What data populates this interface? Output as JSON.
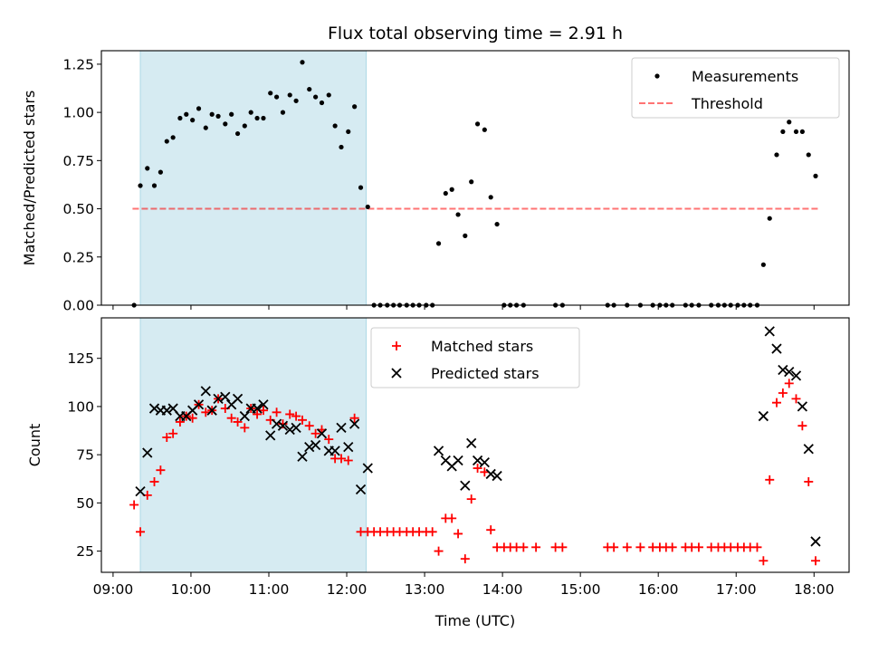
{
  "figure": {
    "title": "Flux total observing time = 2.91 h",
    "xlabel": "Time (UTC)",
    "xticks": [
      "09:00",
      "10:00",
      "11:00",
      "12:00",
      "13:00",
      "14:00",
      "15:00",
      "16:00",
      "17:00",
      "18:00"
    ],
    "colors": {
      "span": "#add8e6",
      "threshold": "#ff0000",
      "measurement": "#000000",
      "matched": "#ff0000",
      "predicted": "#000000"
    }
  },
  "chart_data": [
    {
      "type": "scatter",
      "ylabel": "Matched/Predicted stars",
      "xlim": [
        8.85,
        18.45
      ],
      "ylim": [
        0,
        1.32
      ],
      "yticks": [
        "0.00",
        "0.25",
        "0.50",
        "0.75",
        "1.00",
        "1.25"
      ],
      "x_units": "hours UTC",
      "shaded_interval": [
        9.35,
        12.25
      ],
      "threshold": {
        "value": 0.5,
        "x_range": [
          9.25,
          18.05
        ],
        "style": "dashed"
      },
      "legend": {
        "placement": "top-right",
        "entries": [
          "Measurements",
          "Threshold"
        ]
      },
      "series": [
        {
          "name": "Measurements",
          "points": [
            [
              9.27,
              0.0
            ],
            [
              9.35,
              0.62
            ],
            [
              9.44,
              0.71
            ],
            [
              9.53,
              0.62
            ],
            [
              9.61,
              0.69
            ],
            [
              9.69,
              0.85
            ],
            [
              9.77,
              0.87
            ],
            [
              9.86,
              0.97
            ],
            [
              9.94,
              0.99
            ],
            [
              10.02,
              0.96
            ],
            [
              10.1,
              1.02
            ],
            [
              10.19,
              0.92
            ],
            [
              10.27,
              0.99
            ],
            [
              10.35,
              0.98
            ],
            [
              10.44,
              0.94
            ],
            [
              10.52,
              0.99
            ],
            [
              10.6,
              0.89
            ],
            [
              10.69,
              0.93
            ],
            [
              10.77,
              1.0
            ],
            [
              10.85,
              0.97
            ],
            [
              10.93,
              0.97
            ],
            [
              11.02,
              1.1
            ],
            [
              11.1,
              1.08
            ],
            [
              11.18,
              1.0
            ],
            [
              11.27,
              1.09
            ],
            [
              11.35,
              1.06
            ],
            [
              11.43,
              1.26
            ],
            [
              11.52,
              1.12
            ],
            [
              11.6,
              1.08
            ],
            [
              11.68,
              1.05
            ],
            [
              11.77,
              1.09
            ],
            [
              11.85,
              0.93
            ],
            [
              11.93,
              0.82
            ],
            [
              12.02,
              0.9
            ],
            [
              12.1,
              1.03
            ],
            [
              12.18,
              0.61
            ],
            [
              12.27,
              0.51
            ],
            [
              12.35,
              0.0
            ],
            [
              12.43,
              0.0
            ],
            [
              12.52,
              0.0
            ],
            [
              12.6,
              0.0
            ],
            [
              12.68,
              0.0
            ],
            [
              12.77,
              0.0
            ],
            [
              12.85,
              0.0
            ],
            [
              12.93,
              0.0
            ],
            [
              13.02,
              0.0
            ],
            [
              13.1,
              0.0
            ],
            [
              13.18,
              0.32
            ],
            [
              13.27,
              0.58
            ],
            [
              13.35,
              0.6
            ],
            [
              13.43,
              0.47
            ],
            [
              13.52,
              0.36
            ],
            [
              13.6,
              0.64
            ],
            [
              13.68,
              0.94
            ],
            [
              13.77,
              0.91
            ],
            [
              13.85,
              0.56
            ],
            [
              13.93,
              0.42
            ],
            [
              14.02,
              0.0
            ],
            [
              14.1,
              0.0
            ],
            [
              14.18,
              0.0
            ],
            [
              14.27,
              0.0
            ],
            [
              14.68,
              0.0
            ],
            [
              14.77,
              0.0
            ],
            [
              15.35,
              0.0
            ],
            [
              15.43,
              0.0
            ],
            [
              15.6,
              0.0
            ],
            [
              15.77,
              0.0
            ],
            [
              15.93,
              0.0
            ],
            [
              16.02,
              0.0
            ],
            [
              16.1,
              0.0
            ],
            [
              16.18,
              0.0
            ],
            [
              16.35,
              0.0
            ],
            [
              16.43,
              0.0
            ],
            [
              16.52,
              0.0
            ],
            [
              16.68,
              0.0
            ],
            [
              16.77,
              0.0
            ],
            [
              16.85,
              0.0
            ],
            [
              16.93,
              0.0
            ],
            [
              17.02,
              0.0
            ],
            [
              17.1,
              0.0
            ],
            [
              17.18,
              0.0
            ],
            [
              17.27,
              0.0
            ],
            [
              17.35,
              0.21
            ],
            [
              17.43,
              0.45
            ],
            [
              17.52,
              0.78
            ],
            [
              17.6,
              0.9
            ],
            [
              17.68,
              0.95
            ],
            [
              17.77,
              0.9
            ],
            [
              17.85,
              0.9
            ],
            [
              17.93,
              0.78
            ],
            [
              18.02,
              0.67
            ]
          ]
        }
      ]
    },
    {
      "type": "scatter",
      "ylabel": "Count",
      "xlim": [
        8.85,
        18.45
      ],
      "ylim": [
        14,
        146
      ],
      "yticks": [
        "25",
        "50",
        "75",
        "100",
        "125"
      ],
      "x_units": "hours UTC",
      "shaded_interval": [
        9.35,
        12.25
      ],
      "legend": {
        "placement": "top-center",
        "entries": [
          "Matched stars",
          "Predicted stars"
        ]
      },
      "series": [
        {
          "name": "Matched stars",
          "marker": "plus",
          "points": [
            [
              9.27,
              49
            ],
            [
              9.35,
              35
            ],
            [
              9.44,
              54
            ],
            [
              9.53,
              61
            ],
            [
              9.61,
              67
            ],
            [
              9.69,
              84
            ],
            [
              9.77,
              86
            ],
            [
              9.86,
              92
            ],
            [
              9.94,
              95
            ],
            [
              10.02,
              94
            ],
            [
              10.1,
              101
            ],
            [
              10.19,
              97
            ],
            [
              10.27,
              98
            ],
            [
              10.35,
              104
            ],
            [
              10.44,
              99
            ],
            [
              10.52,
              94
            ],
            [
              10.6,
              92
            ],
            [
              10.69,
              89
            ],
            [
              10.77,
              99
            ],
            [
              10.85,
              96
            ],
            [
              10.93,
              98
            ],
            [
              11.02,
              93
            ],
            [
              11.1,
              97
            ],
            [
              11.18,
              91
            ],
            [
              11.27,
              96
            ],
            [
              11.35,
              95
            ],
            [
              11.43,
              93
            ],
            [
              11.52,
              90
            ],
            [
              11.6,
              86
            ],
            [
              11.68,
              88
            ],
            [
              11.77,
              83
            ],
            [
              11.85,
              73
            ],
            [
              11.93,
              73
            ],
            [
              12.02,
              72
            ],
            [
              12.1,
              94
            ],
            [
              12.18,
              35
            ],
            [
              12.27,
              35
            ],
            [
              12.35,
              35
            ],
            [
              12.43,
              35
            ],
            [
              12.52,
              35
            ],
            [
              12.6,
              35
            ],
            [
              12.68,
              35
            ],
            [
              12.77,
              35
            ],
            [
              12.85,
              35
            ],
            [
              12.93,
              35
            ],
            [
              13.02,
              35
            ],
            [
              13.1,
              35
            ],
            [
              13.18,
              25
            ],
            [
              13.27,
              42
            ],
            [
              13.35,
              42
            ],
            [
              13.43,
              34
            ],
            [
              13.52,
              21
            ],
            [
              13.6,
              52
            ],
            [
              13.68,
              68
            ],
            [
              13.77,
              66
            ],
            [
              13.85,
              36
            ],
            [
              13.93,
              27
            ],
            [
              14.02,
              27
            ],
            [
              14.1,
              27
            ],
            [
              14.18,
              27
            ],
            [
              14.27,
              27
            ],
            [
              14.43,
              27
            ],
            [
              14.68,
              27
            ],
            [
              14.77,
              27
            ],
            [
              15.35,
              27
            ],
            [
              15.43,
              27
            ],
            [
              15.6,
              27
            ],
            [
              15.77,
              27
            ],
            [
              15.93,
              27
            ],
            [
              16.02,
              27
            ],
            [
              16.1,
              27
            ],
            [
              16.18,
              27
            ],
            [
              16.35,
              27
            ],
            [
              16.43,
              27
            ],
            [
              16.52,
              27
            ],
            [
              16.68,
              27
            ],
            [
              16.77,
              27
            ],
            [
              16.85,
              27
            ],
            [
              16.93,
              27
            ],
            [
              17.02,
              27
            ],
            [
              17.1,
              27
            ],
            [
              17.18,
              27
            ],
            [
              17.27,
              27
            ],
            [
              17.35,
              20
            ],
            [
              17.43,
              62
            ],
            [
              17.52,
              102
            ],
            [
              17.6,
              107
            ],
            [
              17.68,
              112
            ],
            [
              17.77,
              104
            ],
            [
              17.85,
              90
            ],
            [
              17.93,
              61
            ],
            [
              18.02,
              20
            ]
          ]
        },
        {
          "name": "Predicted stars",
          "marker": "x",
          "points": [
            [
              9.35,
              56
            ],
            [
              9.44,
              76
            ],
            [
              9.53,
              99
            ],
            [
              9.61,
              98
            ],
            [
              9.69,
              98
            ],
            [
              9.77,
              99
            ],
            [
              9.86,
              95
            ],
            [
              9.94,
              95
            ],
            [
              10.02,
              98
            ],
            [
              10.1,
              101
            ],
            [
              10.19,
              108
            ],
            [
              10.27,
              98
            ],
            [
              10.35,
              104
            ],
            [
              10.44,
              105
            ],
            [
              10.52,
              101
            ],
            [
              10.6,
              104
            ],
            [
              10.69,
              95
            ],
            [
              10.77,
              99
            ],
            [
              10.85,
              99
            ],
            [
              10.93,
              101
            ],
            [
              11.02,
              85
            ],
            [
              11.1,
              91
            ],
            [
              11.18,
              90
            ],
            [
              11.27,
              88
            ],
            [
              11.35,
              89
            ],
            [
              11.43,
              74
            ],
            [
              11.52,
              79
            ],
            [
              11.6,
              80
            ],
            [
              11.68,
              86
            ],
            [
              11.77,
              77
            ],
            [
              11.85,
              77
            ],
            [
              11.93,
              89
            ],
            [
              12.02,
              79
            ],
            [
              12.1,
              91
            ],
            [
              12.18,
              57
            ],
            [
              12.27,
              68
            ],
            [
              13.18,
              77
            ],
            [
              13.27,
              72
            ],
            [
              13.35,
              69
            ],
            [
              13.43,
              72
            ],
            [
              13.52,
              59
            ],
            [
              13.6,
              81
            ],
            [
              13.68,
              72
            ],
            [
              13.77,
              71
            ],
            [
              13.85,
              65
            ],
            [
              13.93,
              64
            ],
            [
              17.35,
              95
            ],
            [
              17.43,
              139
            ],
            [
              17.52,
              130
            ],
            [
              17.6,
              119
            ],
            [
              17.68,
              118
            ],
            [
              17.77,
              116
            ],
            [
              17.85,
              100
            ],
            [
              17.93,
              78
            ],
            [
              18.02,
              30
            ]
          ]
        }
      ]
    }
  ]
}
